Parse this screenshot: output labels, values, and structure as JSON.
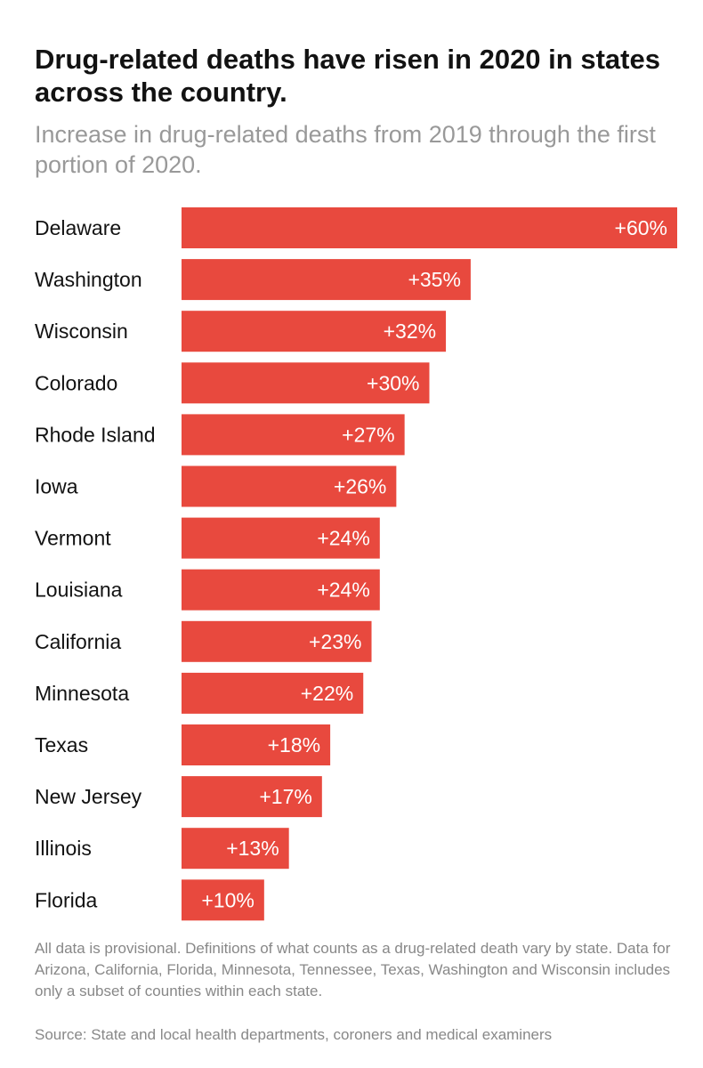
{
  "chart_data": {
    "type": "bar",
    "orientation": "horizontal",
    "title": "Drug-related deaths have risen in 2020 in states across the country.",
    "subtitle": "Increase in drug-related deaths from 2019 through the first portion of 2020.",
    "categories": [
      "Delaware",
      "Washington",
      "Wisconsin",
      "Colorado",
      "Rhode Island",
      "Iowa",
      "Vermont",
      "Louisiana",
      "California",
      "Minnesota",
      "Texas",
      "New Jersey",
      "Illinois",
      "Florida"
    ],
    "values": [
      60,
      35,
      32,
      30,
      27,
      26,
      24,
      24,
      23,
      22,
      18,
      17,
      13,
      10
    ],
    "data_labels": [
      "+60%",
      "+35%",
      "+32%",
      "+30%",
      "+27%",
      "+26%",
      "+24%",
      "+24%",
      "+23%",
      "+22%",
      "+18%",
      "+17%",
      "+13%",
      "+10%"
    ],
    "xlim": [
      0,
      60
    ],
    "grid": false,
    "legend": "none",
    "bar_color": "#e8493e"
  },
  "footer": {
    "note": "All data is provisional. Definitions of what counts as a drug-related death vary by state. Data for Arizona, California, Florida, Minnesota, Tennessee, Texas, Washington and Wisconsin includes only a subset of counties within each state.",
    "source": "Source: State and local health departments, coroners and medical examiners"
  }
}
